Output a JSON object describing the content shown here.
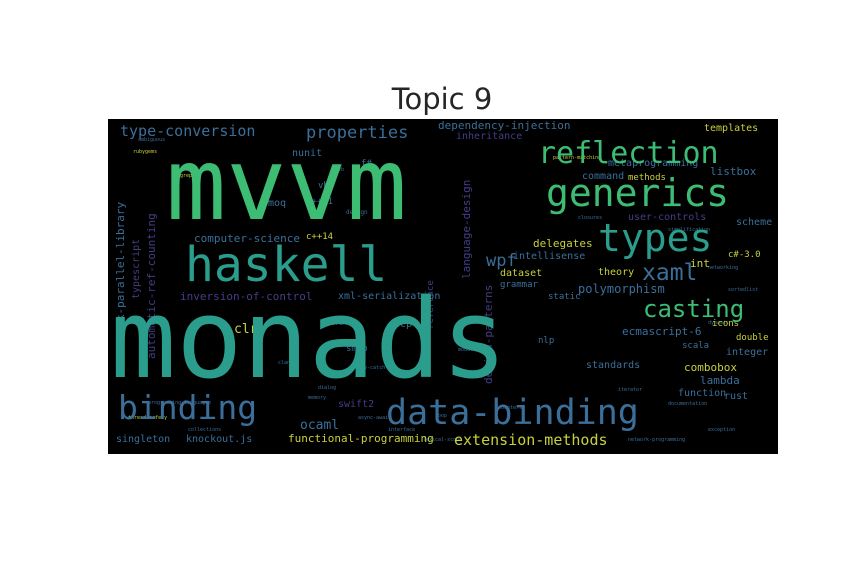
{
  "title": "Topic 9",
  "colors": {
    "background": "#000000",
    "green": "#3dbc74",
    "teal": "#2a9d8c",
    "blue": "#3b6f9a",
    "indigo": "#433e85",
    "purple": "#482475",
    "yellow": "#c8d13a",
    "pale": "#9fd86b"
  },
  "words": [
    "mvvm",
    "monads",
    "haskell",
    "generics",
    "reflection",
    "types",
    "binding",
    "data-binding",
    "xaml",
    "casting",
    "type-conversion",
    "properties",
    "dependency-injection",
    "inheritance",
    "metaprogramming",
    "wpf",
    "extension-methods",
    "ocaml",
    "functional-programming",
    "singleton",
    "knockout.js",
    "delegates",
    "theory",
    "dataset",
    "polymorphism",
    "ecmascript-6",
    "scala",
    "integer",
    "combobox",
    "lambda",
    "function",
    "rust",
    "typescript",
    "c++11",
    "c++14",
    "vb6",
    "moq",
    "nunit",
    "computer-science",
    "inversion-of-control",
    "xml-serialization",
    "swift",
    "clr",
    "tcp",
    "smtp",
    "swift2",
    "intellisense",
    "language-design",
    "design-patterns",
    "task-parallel-library",
    "automatic-ref-counting",
    "templates",
    "listbox",
    "command",
    "methods",
    "user-controls",
    "scheme",
    "c#-3.0",
    "int",
    "icons",
    "double",
    "standards",
    "grammar",
    "static",
    "nlp",
    "reference",
    "f#",
    "design"
  ]
}
